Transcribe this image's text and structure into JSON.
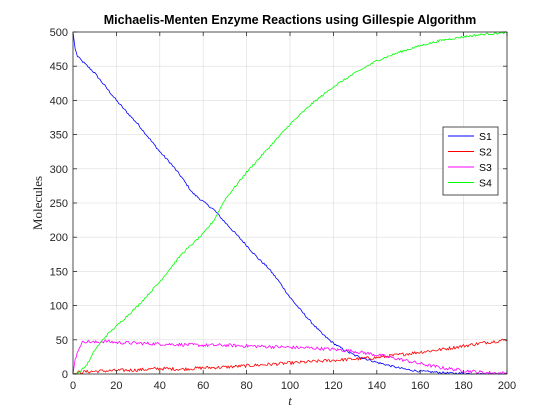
{
  "chart_data": {
    "type": "line",
    "title": "Michaelis-Menten Enzyme Reactions using Gillespie Algorithm",
    "xlabel": "t",
    "ylabel": "Molecules",
    "xlim": [
      0,
      200
    ],
    "ylim": [
      0,
      500
    ],
    "xticks": [
      0,
      20,
      40,
      60,
      80,
      100,
      120,
      140,
      160,
      180,
      200
    ],
    "yticks": [
      0,
      50,
      100,
      150,
      200,
      250,
      300,
      350,
      400,
      450,
      500
    ],
    "grid": true,
    "legend_position": "right",
    "series": [
      {
        "name": "S1",
        "color": "#0000ff",
        "x": [
          0,
          1,
          2,
          4,
          6,
          10,
          15,
          20,
          25,
          30,
          35,
          40,
          45,
          50,
          55,
          60,
          65,
          70,
          75,
          80,
          85,
          90,
          95,
          100,
          105,
          110,
          115,
          120,
          125,
          130,
          135,
          140,
          145,
          150,
          155,
          160,
          165,
          170,
          175,
          180,
          185,
          190,
          195,
          200
        ],
        "values": [
          500,
          475,
          465,
          458,
          452,
          440,
          420,
          400,
          382,
          365,
          345,
          325,
          308,
          288,
          265,
          252,
          240,
          222,
          205,
          188,
          170,
          155,
          135,
          112,
          93,
          75,
          58,
          45,
          35,
          27,
          22,
          17,
          13,
          9,
          6,
          4,
          3,
          2,
          1,
          1,
          0,
          0,
          0,
          0
        ]
      },
      {
        "name": "S2",
        "color": "#ff0000",
        "x": [
          0,
          2,
          5,
          10,
          20,
          30,
          40,
          50,
          60,
          70,
          80,
          90,
          100,
          110,
          120,
          130,
          140,
          150,
          160,
          170,
          180,
          190,
          200
        ],
        "values": [
          0,
          2,
          3,
          4,
          5,
          6,
          8,
          7,
          9,
          10,
          12,
          14,
          16,
          18,
          20,
          22,
          24,
          28,
          32,
          36,
          41,
          46,
          50
        ]
      },
      {
        "name": "S3",
        "color": "#ff00ff",
        "x": [
          0,
          1,
          3,
          5,
          8,
          10,
          15,
          20,
          30,
          40,
          50,
          60,
          70,
          80,
          90,
          100,
          110,
          120,
          130,
          140,
          150,
          160,
          170,
          180,
          190,
          200
        ],
        "values": [
          0,
          22,
          40,
          48,
          47,
          46,
          48,
          46,
          45,
          44,
          43,
          42,
          42,
          41,
          40,
          39,
          38,
          36,
          33,
          28,
          22,
          15,
          9,
          5,
          2,
          1
        ]
      },
      {
        "name": "S4",
        "color": "#00ff00",
        "x": [
          0,
          2,
          4,
          6,
          8,
          10,
          15,
          20,
          30,
          40,
          50,
          55,
          60,
          65,
          70,
          80,
          90,
          100,
          110,
          120,
          130,
          140,
          150,
          160,
          170,
          180,
          190,
          200
        ],
        "values": [
          0,
          1,
          6,
          12,
          22,
          35,
          55,
          70,
          100,
          135,
          175,
          190,
          205,
          225,
          255,
          295,
          330,
          365,
          395,
          420,
          440,
          458,
          470,
          480,
          488,
          493,
          497,
          499
        ]
      }
    ]
  }
}
